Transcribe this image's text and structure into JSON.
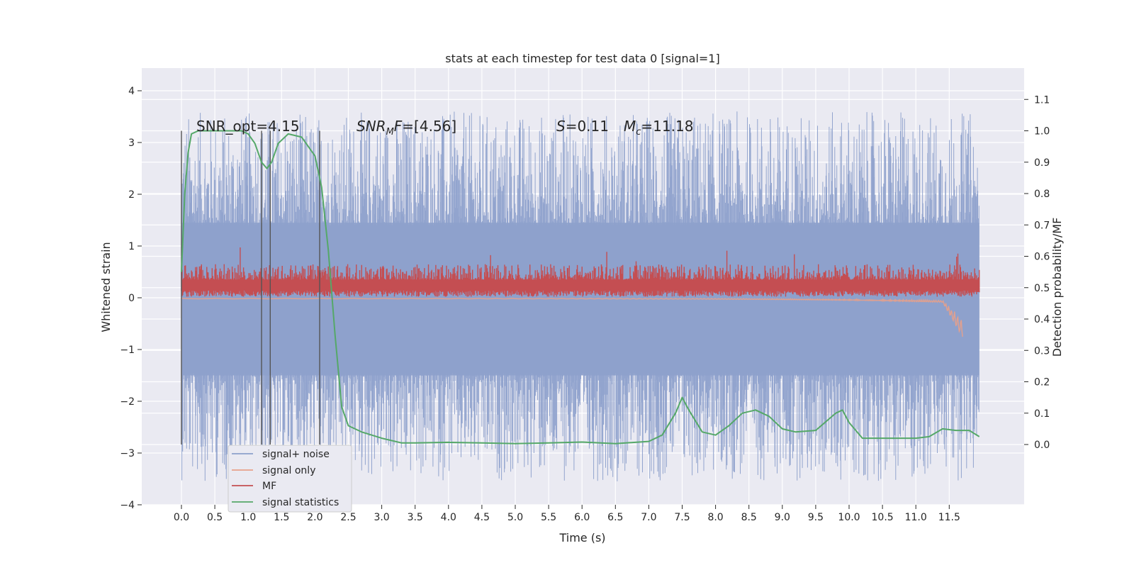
{
  "chart_data": {
    "type": "line",
    "title": "stats at each timestep for test data 0 [signal=1]",
    "xlabel": "Time (s)",
    "ylabel_left": "Whitened strain",
    "ylabel_right": "Detection probability/MF",
    "xlim": [
      -0.5,
      12.5
    ],
    "ylim_left": [
      -4,
      4.4
    ],
    "ylim_right": [
      -0.2,
      1.2
    ],
    "x_ticks": [
      "0.0",
      "0.5",
      "1.0",
      "1.5",
      "2.0",
      "2.5",
      "3.0",
      "3.5",
      "4.0",
      "4.5",
      "5.0",
      "5.5",
      "6.0",
      "6.5",
      "7.0",
      "7.5",
      "8.0",
      "8.5",
      "9.0",
      "9.5",
      "10.0",
      "10.5",
      "11.0",
      "11.5"
    ],
    "y_ticks_left": [
      "−4",
      "−3",
      "−2",
      "−1",
      "0",
      "1",
      "2",
      "3",
      "4"
    ],
    "y_ticks_right": [
      "0.0",
      "0.1",
      "0.2",
      "0.3",
      "0.4",
      "0.5",
      "0.6",
      "0.7",
      "0.8",
      "0.9",
      "1.0",
      "1.1"
    ],
    "grid": true,
    "legend_position": "lower-left",
    "annotations": [
      {
        "id": "snr_opt",
        "text": "SNR_opt=4.15",
        "x": 0.2,
        "y_right": 1.0
      },
      {
        "id": "snr_mf",
        "text": "=[4.56]",
        "x": 2.6,
        "y_right": 1.0
      },
      {
        "id": "s_mc",
        "text": "=0.11",
        "x": 5.6,
        "y_right": 1.0
      },
      {
        "id": "mc",
        "text": "=11.18",
        "x": 6.6,
        "y_right": 1.0
      }
    ],
    "vlines": [
      0.0,
      1.2,
      1.33,
      2.07
    ],
    "series": [
      {
        "name": "signal+ noise",
        "color": "#8da0cb",
        "style": "noise band, amplitude ~±1.4 with spikes to ±3.5",
        "t_range": [
          0.0,
          11.95
        ]
      },
      {
        "name": "signal only",
        "color": "#e8a08a",
        "style": "chirp growing to -0.8 near 11.65 s",
        "t_range": [
          0.0,
          11.7
        ]
      },
      {
        "name": "MF",
        "color": "#c44e52",
        "style": "band 0.0 to 0.6 with peaks near 1.0",
        "t_range": [
          0.0,
          11.95
        ]
      },
      {
        "name": "signal statistics",
        "color": "#55a868",
        "x": [
          0.0,
          0.05,
          0.1,
          0.15,
          0.25,
          0.5,
          0.9,
          1.0,
          1.1,
          1.2,
          1.28,
          1.35,
          1.45,
          1.6,
          1.8,
          2.0,
          2.1,
          2.2,
          2.3,
          2.4,
          2.5,
          2.7,
          3.0,
          3.3,
          3.5,
          4.0,
          4.5,
          5.0,
          5.5,
          6.0,
          6.5,
          7.0,
          7.2,
          7.4,
          7.5,
          7.6,
          7.8,
          8.0,
          8.2,
          8.4,
          8.6,
          8.8,
          9.0,
          9.2,
          9.5,
          9.8,
          9.9,
          10.0,
          10.2,
          10.5,
          11.0,
          11.2,
          11.4,
          11.6,
          11.8,
          11.95
        ],
        "y": [
          0.55,
          0.8,
          0.93,
          0.99,
          1.0,
          1.0,
          1.0,
          0.99,
          0.96,
          0.9,
          0.88,
          0.9,
          0.96,
          0.99,
          0.98,
          0.92,
          0.82,
          0.62,
          0.35,
          0.12,
          0.06,
          0.04,
          0.02,
          0.005,
          0.005,
          0.007,
          0.005,
          0.003,
          0.005,
          0.008,
          0.003,
          0.01,
          0.03,
          0.1,
          0.15,
          0.11,
          0.04,
          0.03,
          0.06,
          0.1,
          0.11,
          0.09,
          0.05,
          0.04,
          0.045,
          0.1,
          0.11,
          0.07,
          0.02,
          0.02,
          0.02,
          0.025,
          0.05,
          0.045,
          0.045,
          0.025
        ]
      }
    ]
  },
  "legend": {
    "items": [
      {
        "label": "signal+ noise",
        "color": "#8da0cb"
      },
      {
        "label": "signal only",
        "color": "#e8a08a"
      },
      {
        "label": "MF",
        "color": "#c44e52"
      },
      {
        "label": "signal statistics",
        "color": "#55a868"
      }
    ]
  }
}
